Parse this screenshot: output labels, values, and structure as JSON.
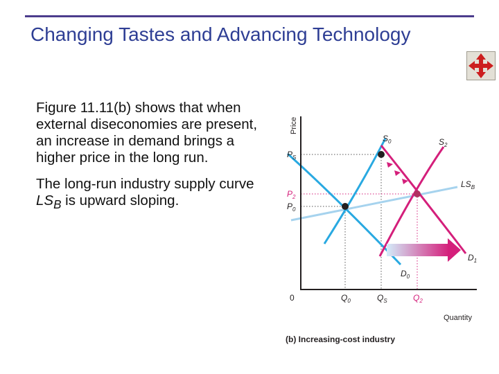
{
  "slide": {
    "title": "Changing Tastes and Advancing Technology",
    "nav_icon": "move-arrows-icon"
  },
  "body": {
    "paragraph1": "Figure 11.11(b) shows that when external diseconomies are present, an increase in demand brings a higher price in the long run.",
    "paragraph2_prefix": "The long-run industry supply curve ",
    "paragraph2_term": "LS",
    "paragraph2_sub": "B",
    "paragraph2_suffix": " is upward sloping."
  },
  "figure": {
    "y_axis_label": "Price",
    "x_axis_label": "Quantity",
    "caption": "(b) Increasing-cost industry",
    "origin_label": "0",
    "price_labels": [
      {
        "main": "P",
        "sub": "S",
        "color": "#231f20"
      },
      {
        "main": "P",
        "sub": "2",
        "color": "#d41f7b"
      },
      {
        "main": "P",
        "sub": "0",
        "color": "#231f20"
      }
    ],
    "quantity_labels": [
      {
        "main": "Q",
        "sub": "0",
        "color": "#231f20"
      },
      {
        "main": "Q",
        "sub": "S",
        "color": "#231f20"
      },
      {
        "main": "Q",
        "sub": "2",
        "color": "#d41f7b"
      }
    ],
    "curve_labels": [
      {
        "main": "S",
        "sub": "0"
      },
      {
        "main": "S",
        "sub": "2"
      },
      {
        "main": "LS",
        "sub": "B"
      },
      {
        "main": "D",
        "sub": "1"
      },
      {
        "main": "D",
        "sub": "0"
      }
    ],
    "colors": {
      "supply_initial": "#29a9e1",
      "demand_initial": "#29a9e1",
      "supply_new": "#d41f7b",
      "demand_new": "#d41f7b",
      "long_run_supply": "#a6d3ee",
      "shift_arrow_start": "#d3ecfa",
      "shift_arrow_end": "#d41f7b",
      "axis": "#231f20",
      "equilibrium_point": "#231f20",
      "new_equilibrium_point": "#b03060"
    }
  }
}
